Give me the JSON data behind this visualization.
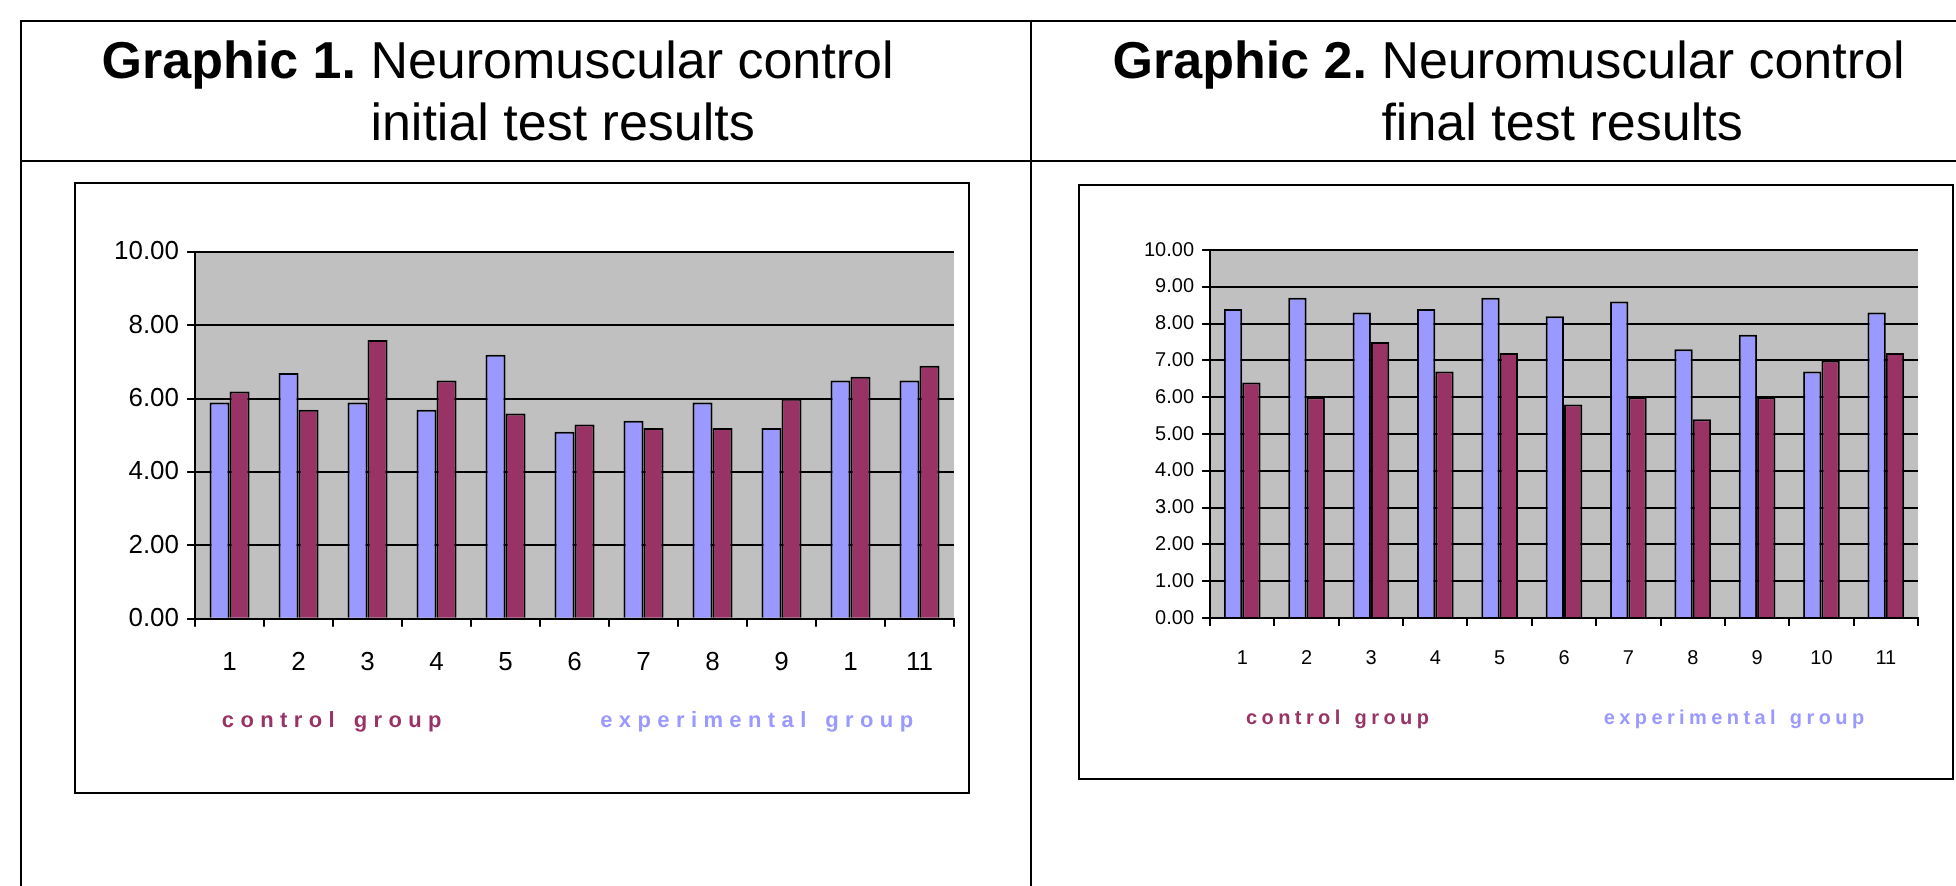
{
  "chart_data": [
    {
      "type": "bar",
      "title": "Graphic 1.",
      "subtitle": "Neuromuscular control initial test results",
      "categories": [
        "1",
        "2",
        "3",
        "4",
        "5",
        "6",
        "7",
        "8",
        "9",
        "1",
        "11"
      ],
      "series": [
        {
          "name": "experimental group",
          "color": "#9999ff",
          "values": [
            5.9,
            6.7,
            5.9,
            5.7,
            7.2,
            5.1,
            5.4,
            5.9,
            5.2,
            6.5,
            6.5
          ]
        },
        {
          "name": "control group",
          "color": "#993366",
          "values": [
            6.2,
            5.7,
            7.6,
            6.5,
            5.6,
            5.3,
            5.2,
            5.2,
            6.0,
            6.6,
            6.9
          ]
        }
      ],
      "ylim": [
        0,
        10
      ],
      "yticks": [
        {
          "value": 0,
          "label": "0.00"
        },
        {
          "value": 2,
          "label": "2.00"
        },
        {
          "value": 4,
          "label": "4.00"
        },
        {
          "value": 6,
          "label": "6.00"
        },
        {
          "value": 8,
          "label": "8.00"
        },
        {
          "value": 10,
          "label": "10.00"
        }
      ],
      "grid": "y",
      "legend": "bottom"
    },
    {
      "type": "bar",
      "title": "Graphic 2.",
      "subtitle": "Neuromuscular control final test results",
      "categories": [
        "1",
        "2",
        "3",
        "4",
        "5",
        "6",
        "7",
        "8",
        "9",
        "10",
        "11"
      ],
      "series": [
        {
          "name": "experimental group",
          "color": "#9999ff",
          "values": [
            8.4,
            8.7,
            8.3,
            8.4,
            8.7,
            8.2,
            8.6,
            7.3,
            7.7,
            6.7,
            8.3
          ]
        },
        {
          "name": "control group",
          "color": "#993366",
          "values": [
            6.4,
            6.0,
            7.5,
            6.7,
            7.2,
            5.8,
            6.0,
            5.4,
            6.0,
            7.0,
            7.2
          ]
        }
      ],
      "ylim": [
        0,
        10
      ],
      "yticks": [
        {
          "value": 0,
          "label": "0.00"
        },
        {
          "value": 1,
          "label": "1.00"
        },
        {
          "value": 2,
          "label": "2.00"
        },
        {
          "value": 3,
          "label": "3.00"
        },
        {
          "value": 4,
          "label": "4.00"
        },
        {
          "value": 5,
          "label": "5.00"
        },
        {
          "value": 6,
          "label": "6.00"
        },
        {
          "value": 7,
          "label": "7.00"
        },
        {
          "value": 8,
          "label": "8.00"
        },
        {
          "value": 9,
          "label": "9.00"
        },
        {
          "value": 10,
          "label": "10.00"
        }
      ],
      "grid": "y",
      "legend": "bottom"
    }
  ]
}
